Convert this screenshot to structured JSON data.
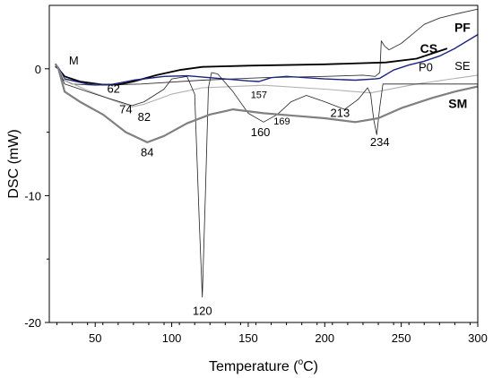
{
  "chart_data": {
    "type": "line",
    "xlabel_text": "Temperature (",
    "xlabel_sup": "o",
    "xlabel_unit": "C)",
    "ylabel": "DSC (mW)",
    "xlim": [
      20,
      300
    ],
    "ylim": [
      -20,
      5
    ],
    "x_ticks": [
      50,
      100,
      150,
      200,
      250,
      300
    ],
    "y_ticks": [
      0,
      -10,
      -20
    ],
    "grid": false,
    "series": [
      {
        "name": "PF",
        "label_bold": true,
        "color": "#333333",
        "stroke": 0.9,
        "points": [
          [
            24,
            0.3
          ],
          [
            26,
            0
          ],
          [
            28,
            -0.8
          ],
          [
            35,
            -1.2
          ],
          [
            50,
            -1.3
          ],
          [
            80,
            -1.2
          ],
          [
            120,
            -0.9
          ],
          [
            160,
            -0.7
          ],
          [
            200,
            -0.6
          ],
          [
            225,
            -0.5
          ],
          [
            233,
            -0.6
          ],
          [
            236,
            -0.3
          ],
          [
            237,
            2.2
          ],
          [
            239,
            1.8
          ],
          [
            242,
            1.5
          ],
          [
            250,
            2.0
          ],
          [
            258,
            2.8
          ],
          [
            265,
            3.5
          ],
          [
            275,
            4.0
          ],
          [
            285,
            4.3
          ],
          [
            300,
            4.7
          ]
        ]
      },
      {
        "name": "CS",
        "label_bold": true,
        "color": "#000000",
        "stroke": 1.8,
        "points": [
          [
            24,
            0.2
          ],
          [
            26,
            0
          ],
          [
            30,
            -0.6
          ],
          [
            40,
            -1.0
          ],
          [
            55,
            -1.25
          ],
          [
            65,
            -1.25
          ],
          [
            75,
            -1.0
          ],
          [
            90,
            -0.5
          ],
          [
            105,
            -0.1
          ],
          [
            120,
            0.15
          ],
          [
            150,
            0.25
          ],
          [
            200,
            0.35
          ],
          [
            240,
            0.5
          ],
          [
            260,
            0.8
          ],
          [
            280,
            1.6
          ]
        ]
      },
      {
        "name": "P0",
        "label_bold": false,
        "color": "#1a237e",
        "stroke": 1.4,
        "points": [
          [
            24,
            0.3
          ],
          [
            26,
            0.1
          ],
          [
            30,
            -0.8
          ],
          [
            45,
            -1.2
          ],
          [
            60,
            -1.25
          ],
          [
            75,
            -0.9
          ],
          [
            95,
            -0.6
          ],
          [
            110,
            -0.55
          ],
          [
            130,
            -0.75
          ],
          [
            150,
            -0.95
          ],
          [
            157,
            -1.0
          ],
          [
            165,
            -0.7
          ],
          [
            175,
            -0.6
          ],
          [
            200,
            -0.8
          ],
          [
            220,
            -0.9
          ],
          [
            233,
            -0.8
          ],
          [
            236,
            -0.75
          ],
          [
            245,
            -0.1
          ],
          [
            255,
            0.3
          ],
          [
            265,
            0.6
          ],
          [
            275,
            1.0
          ],
          [
            285,
            1.6
          ],
          [
            300,
            2.7
          ]
        ]
      },
      {
        "name": "SE",
        "label_bold": false,
        "color": "#b0b0b0",
        "stroke": 1.1,
        "points": [
          [
            24,
            0.4
          ],
          [
            26,
            0
          ],
          [
            30,
            -0.9
          ],
          [
            45,
            -1.7
          ],
          [
            62,
            -2.5
          ],
          [
            74,
            -3.0
          ],
          [
            82,
            -2.8
          ],
          [
            100,
            -2.0
          ],
          [
            120,
            -1.5
          ],
          [
            160,
            -1.3
          ],
          [
            200,
            -1.6
          ],
          [
            230,
            -1.9
          ],
          [
            260,
            -1.2
          ],
          [
            300,
            -0.5
          ]
        ]
      },
      {
        "name": "M",
        "label_bold": false,
        "color": "#222222",
        "stroke": 0.8,
        "points": [
          [
            24,
            0.4
          ],
          [
            26,
            0
          ],
          [
            30,
            -1.2
          ],
          [
            50,
            -2.0
          ],
          [
            74,
            -2.9
          ],
          [
            82,
            -2.6
          ],
          [
            95,
            -1.6
          ],
          [
            100,
            -0.8
          ],
          [
            110,
            -0.6
          ],
          [
            115,
            -2.0
          ],
          [
            118,
            -12.0
          ],
          [
            120,
            -18.0
          ],
          [
            122,
            -10.0
          ],
          [
            124,
            -1.5
          ],
          [
            126,
            -0.3
          ],
          [
            130,
            -0.4
          ],
          [
            140,
            -1.8
          ],
          [
            150,
            -3.5
          ],
          [
            160,
            -4.2
          ],
          [
            169,
            -3.6
          ],
          [
            178,
            -2.6
          ],
          [
            188,
            -2.1
          ],
          [
            200,
            -2.6
          ],
          [
            213,
            -3.2
          ],
          [
            222,
            -2.4
          ],
          [
            228,
            -1.5
          ],
          [
            230,
            -2.0
          ],
          [
            232,
            -4.0
          ],
          [
            234,
            -5.2
          ],
          [
            236,
            -3.0
          ],
          [
            238,
            -1.2
          ],
          [
            250,
            -1.2
          ],
          [
            270,
            -1.2
          ],
          [
            300,
            -1.2
          ]
        ]
      },
      {
        "name": "SM",
        "label_bold": true,
        "color": "#808080",
        "stroke": 2.2,
        "points": [
          [
            24,
            0.4
          ],
          [
            26,
            0
          ],
          [
            30,
            -1.8
          ],
          [
            40,
            -2.6
          ],
          [
            55,
            -3.6
          ],
          [
            70,
            -5.0
          ],
          [
            84,
            -5.8
          ],
          [
            95,
            -5.3
          ],
          [
            110,
            -4.3
          ],
          [
            125,
            -3.6
          ],
          [
            140,
            -3.2
          ],
          [
            160,
            -3.5
          ],
          [
            180,
            -3.7
          ],
          [
            200,
            -3.9
          ],
          [
            220,
            -4.2
          ],
          [
            235,
            -3.9
          ],
          [
            250,
            -3.1
          ],
          [
            270,
            -2.3
          ],
          [
            285,
            -1.8
          ],
          [
            300,
            -1.4
          ]
        ]
      }
    ],
    "annotations": [
      {
        "text": "62",
        "x": 62,
        "y": -1.9,
        "style": "ann"
      },
      {
        "text": "74",
        "x": 70,
        "y": -3.5,
        "style": "ann"
      },
      {
        "text": "82",
        "x": 82,
        "y": -4.1,
        "style": "ann"
      },
      {
        "text": "84",
        "x": 84,
        "y": -6.9,
        "style": "ann"
      },
      {
        "text": "120",
        "x": 120,
        "y": -19.4,
        "style": "ann"
      },
      {
        "text": "157",
        "x": 157,
        "y": -2.3,
        "style": "ann-small"
      },
      {
        "text": "160",
        "x": 158,
        "y": -5.3,
        "style": "ann"
      },
      {
        "text": "169",
        "x": 172,
        "y": -4.4,
        "style": "ann-small"
      },
      {
        "text": "213",
        "x": 210,
        "y": -3.8,
        "style": "ann"
      },
      {
        "text": "234",
        "x": 236,
        "y": -6.1,
        "style": "ann"
      },
      {
        "text": "M",
        "x": 36,
        "y": 0.35,
        "style": "ann-lg"
      }
    ],
    "series_labels": [
      {
        "text": "PF",
        "x": 290,
        "y": 2.9,
        "style": "ann-bold"
      },
      {
        "text": "CS",
        "x": 268,
        "y": 1.25,
        "style": "ann-bold"
      },
      {
        "text": "P0",
        "x": 266,
        "y": -0.2,
        "style": "ann"
      },
      {
        "text": "SE",
        "x": 290,
        "y": -0.1,
        "style": "ann-lg"
      },
      {
        "text": "SM",
        "x": 287,
        "y": -3.1,
        "style": "ann-bold"
      }
    ]
  }
}
